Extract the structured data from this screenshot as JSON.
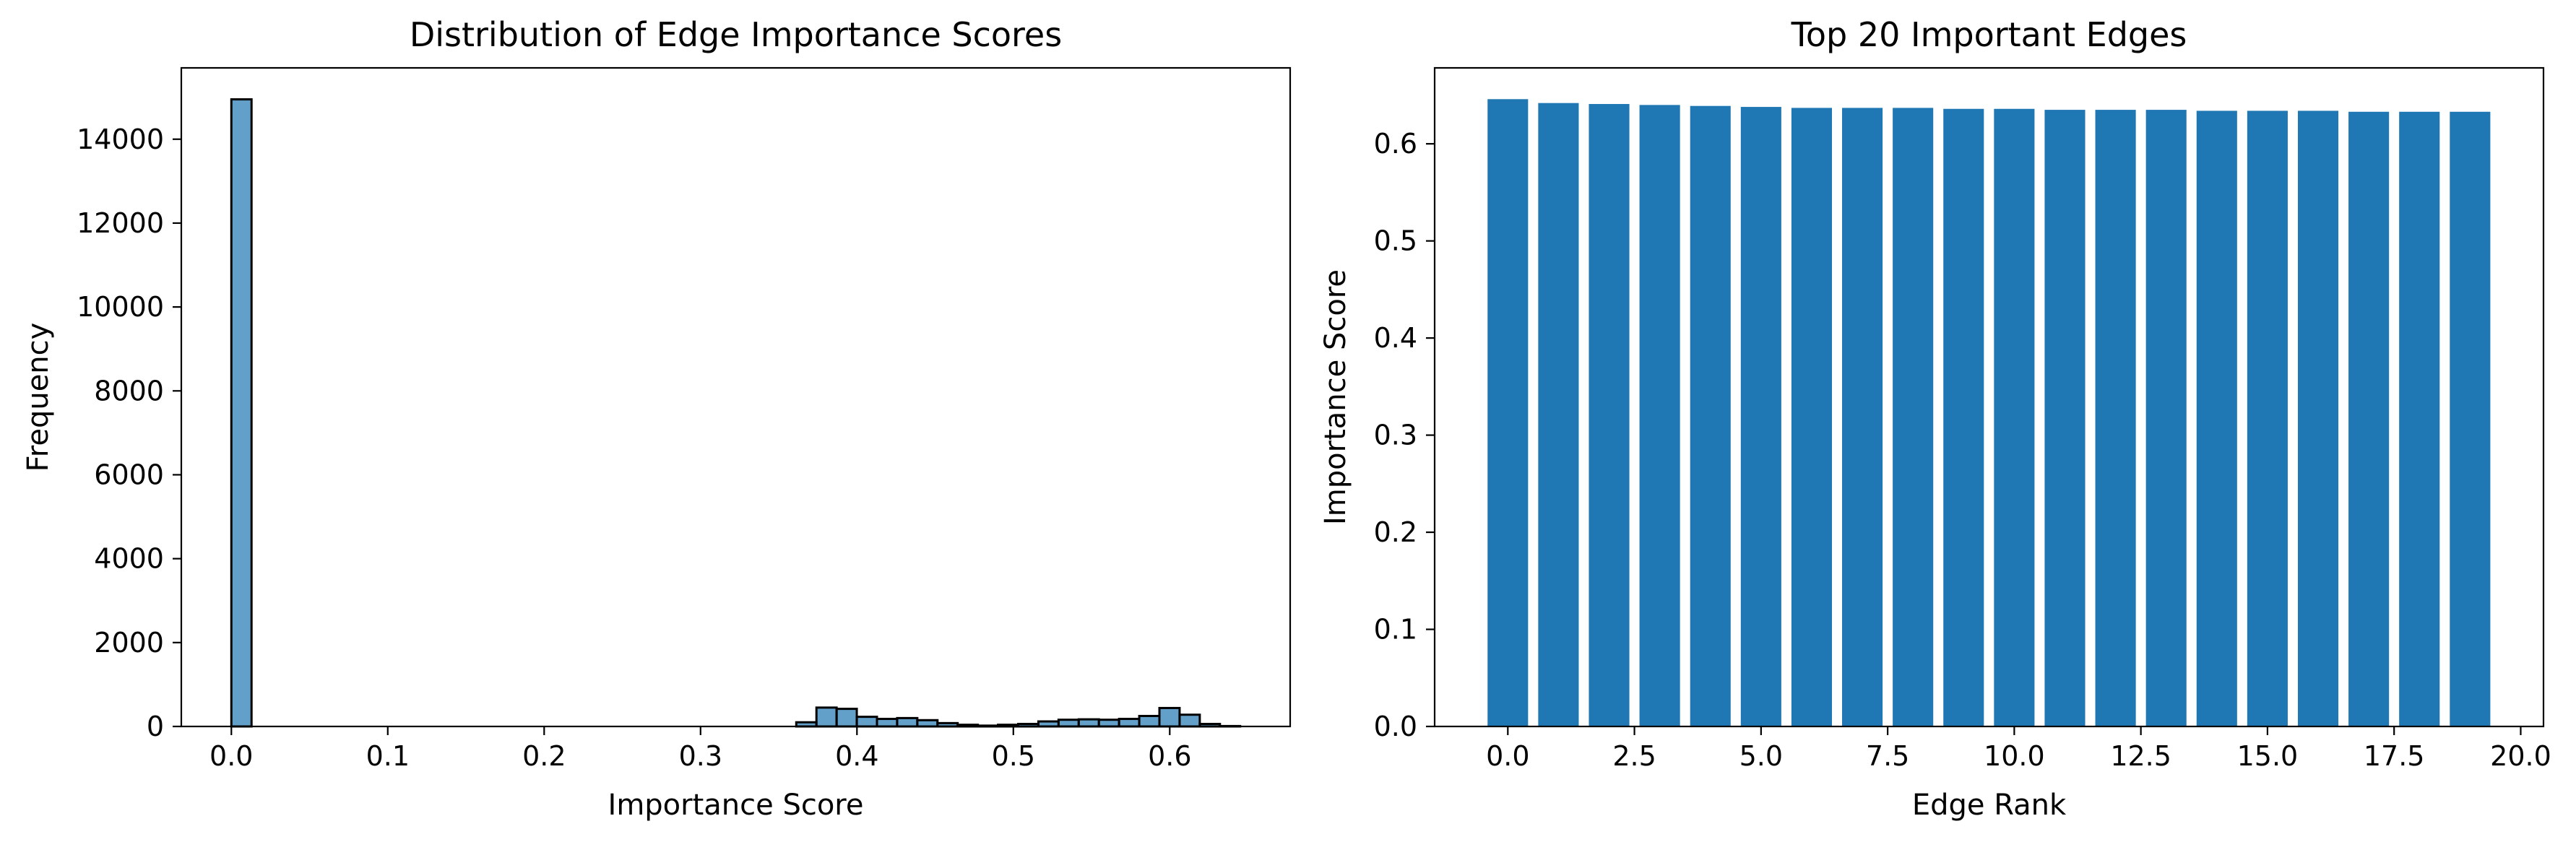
{
  "chart_data": [
    {
      "type": "bar",
      "subtype": "histogram",
      "title": "Distribution of Edge Importance Scores",
      "xlabel": "Importance Score",
      "ylabel": "Frequency",
      "xlim": [
        -0.032,
        0.677
      ],
      "ylim": [
        0,
        15700
      ],
      "xticks": [
        0.0,
        0.1,
        0.2,
        0.3,
        0.4,
        0.5,
        0.6
      ],
      "xtick_labels": [
        "0.0",
        "0.1",
        "0.2",
        "0.3",
        "0.4",
        "0.5",
        "0.6"
      ],
      "yticks": [
        0,
        2000,
        4000,
        6000,
        8000,
        10000,
        12000,
        14000
      ],
      "ytick_labels": [
        "0",
        "2000",
        "4000",
        "6000",
        "8000",
        "10000",
        "12000",
        "14000"
      ],
      "bin_start": 0.0,
      "bin_width": 0.0129,
      "values": [
        14950,
        0,
        0,
        0,
        0,
        0,
        0,
        0,
        0,
        0,
        0,
        0,
        0,
        0,
        0,
        0,
        0,
        0,
        0,
        0,
        0,
        0,
        0,
        0,
        0,
        0,
        0,
        0,
        100,
        450,
        420,
        230,
        180,
        200,
        150,
        80,
        40,
        20,
        40,
        60,
        120,
        160,
        170,
        160,
        180,
        250,
        440,
        280,
        60,
        10
      ],
      "color": "#1f77b4",
      "alpha": 0.7,
      "edgecolor": "#000000",
      "grid": false
    },
    {
      "type": "bar",
      "title": "Top 20 Important Edges",
      "xlabel": "Edge Rank",
      "ylabel": "Importance Score",
      "xlim": [
        -1.445,
        20.45
      ],
      "ylim": [
        0,
        0.6782
      ],
      "xticks": [
        0.0,
        2.5,
        5.0,
        7.5,
        10.0,
        12.5,
        15.0,
        17.5,
        20.0
      ],
      "xtick_labels": [
        "0.0",
        "2.5",
        "5.0",
        "7.5",
        "10.0",
        "12.5",
        "15.0",
        "17.5",
        "20.0"
      ],
      "yticks": [
        0.0,
        0.1,
        0.2,
        0.3,
        0.4,
        0.5,
        0.6
      ],
      "ytick_labels": [
        "0.0",
        "0.1",
        "0.2",
        "0.3",
        "0.4",
        "0.5",
        "0.6"
      ],
      "categories": [
        0,
        1,
        2,
        3,
        4,
        5,
        6,
        7,
        8,
        9,
        10,
        11,
        12,
        13,
        14,
        15,
        16,
        17,
        18,
        19
      ],
      "values": [
        0.646,
        0.642,
        0.641,
        0.64,
        0.639,
        0.638,
        0.637,
        0.637,
        0.637,
        0.636,
        0.636,
        0.635,
        0.635,
        0.635,
        0.634,
        0.634,
        0.634,
        0.633,
        0.633,
        0.633
      ],
      "bar_width": 0.8,
      "color": "#1f77b4",
      "grid": false
    }
  ]
}
